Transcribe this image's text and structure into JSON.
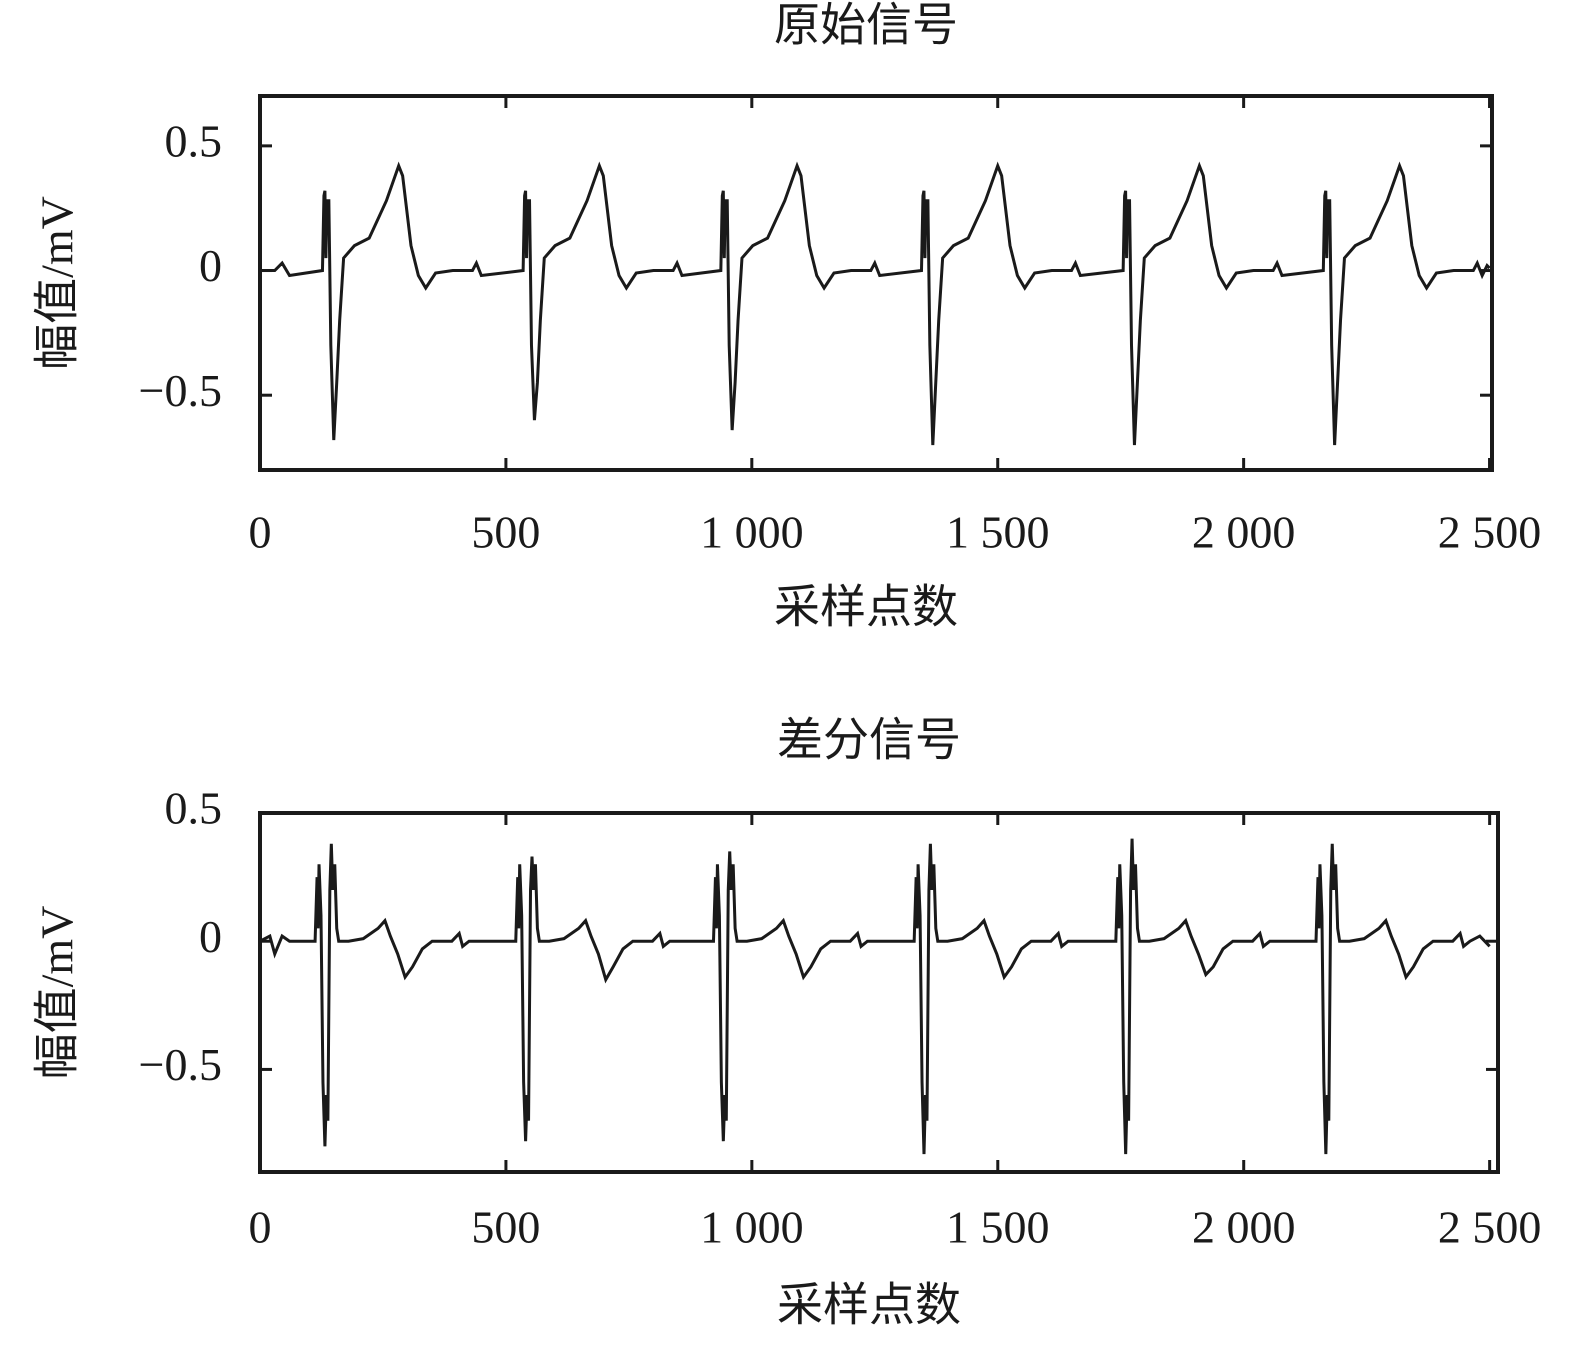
{
  "chart_data": [
    {
      "type": "line",
      "title": "原始信号",
      "xlabel": "采样点数",
      "ylabel": "幅值/mV",
      "color": "#1a1a1a",
      "xlim": [
        0,
        2505
      ],
      "ylim": [
        -0.8,
        0.7
      ],
      "xticks": [
        0,
        500,
        {
          "value": 1000,
          "label": "1 000"
        },
        {
          "value": 1500,
          "label": "1 500"
        },
        {
          "value": 2000,
          "label": "2 000"
        },
        {
          "value": 2500,
          "label": "2 500"
        }
      ],
      "yticks": [
        {
          "value": -0.5,
          "label": "−0.5"
        },
        0,
        0.5
      ],
      "x": [
        0,
        30,
        45,
        60,
        127,
        130,
        132,
        134,
        136,
        140,
        144,
        150,
        156,
        162,
        170,
        192,
        222,
        257,
        282,
        290,
        307,
        322,
        337,
        357,
        392,
        432,
        440,
        450,
        535,
        538,
        540,
        542,
        544,
        548,
        552,
        558,
        564,
        570,
        578,
        600,
        630,
        665,
        690,
        698,
        715,
        730,
        745,
        765,
        800,
        840,
        848,
        858,
        937,
        940,
        942,
        944,
        946,
        950,
        954,
        960,
        966,
        972,
        980,
        1002,
        1032,
        1067,
        1092,
        1100,
        1117,
        1132,
        1147,
        1167,
        1202,
        1242,
        1250,
        1260,
        1345,
        1348,
        1350,
        1352,
        1354,
        1358,
        1362,
        1368,
        1374,
        1380,
        1388,
        1410,
        1440,
        1475,
        1500,
        1508,
        1525,
        1540,
        1555,
        1575,
        1610,
        1650,
        1658,
        1668,
        1755,
        1758,
        1760,
        1762,
        1764,
        1768,
        1772,
        1778,
        1784,
        1790,
        1798,
        1820,
        1850,
        1885,
        1910,
        1918,
        1935,
        1950,
        1965,
        1985,
        2020,
        2060,
        2068,
        2078,
        2162,
        2165,
        2167,
        2169,
        2171,
        2175,
        2179,
        2185,
        2191,
        2197,
        2205,
        2227,
        2257,
        2292,
        2317,
        2325,
        2342,
        2357,
        2372,
        2392,
        2427,
        2467,
        2475,
        2485,
        2495,
        2500
      ],
      "values": [
        0,
        0,
        0.03,
        -0.02,
        0,
        0.3,
        0.32,
        0.05,
        0.28,
        0.28,
        -0.3,
        -0.68,
        -0.45,
        -0.2,
        0.05,
        0.1,
        0.13,
        0.28,
        0.42,
        0.38,
        0.1,
        -0.02,
        -0.07,
        -0.01,
        0,
        0,
        0.03,
        -0.02,
        0,
        0.3,
        0.32,
        0.05,
        0.28,
        0.28,
        -0.3,
        -0.6,
        -0.45,
        -0.2,
        0.05,
        0.1,
        0.13,
        0.28,
        0.42,
        0.38,
        0.1,
        -0.02,
        -0.07,
        -0.01,
        0,
        0,
        0.03,
        -0.02,
        0,
        0.3,
        0.32,
        0.05,
        0.28,
        0.28,
        -0.3,
        -0.64,
        -0.45,
        -0.2,
        0.05,
        0.1,
        0.13,
        0.28,
        0.42,
        0.38,
        0.1,
        -0.02,
        -0.07,
        -0.01,
        0,
        0,
        0.03,
        -0.02,
        0,
        0.3,
        0.32,
        0.05,
        0.28,
        0.28,
        -0.3,
        -0.7,
        -0.45,
        -0.2,
        0.05,
        0.1,
        0.13,
        0.28,
        0.42,
        0.38,
        0.1,
        -0.02,
        -0.07,
        -0.01,
        0,
        0,
        0.03,
        -0.02,
        0,
        0.3,
        0.32,
        0.05,
        0.28,
        0.28,
        -0.3,
        -0.7,
        -0.45,
        -0.2,
        0.05,
        0.1,
        0.13,
        0.28,
        0.42,
        0.38,
        0.1,
        -0.02,
        -0.07,
        -0.01,
        0,
        0,
        0.03,
        -0.02,
        0,
        0.3,
        0.32,
        0.05,
        0.28,
        0.28,
        -0.3,
        -0.7,
        -0.45,
        -0.2,
        0.05,
        0.1,
        0.13,
        0.28,
        0.42,
        0.38,
        0.1,
        -0.02,
        -0.07,
        -0.01,
        0,
        0,
        0.03,
        -0.02,
        0.02,
        0.01
      ]
    },
    {
      "type": "line",
      "title": "差分信号",
      "xlabel": "采样点数",
      "ylabel": "幅值/mV",
      "color": "#1a1a1a",
      "xlim": [
        0,
        2517
      ],
      "ylim": [
        -0.9,
        0.5
      ],
      "xticks": [
        0,
        500,
        {
          "value": 1000,
          "label": "1 000"
        },
        {
          "value": 1500,
          "label": "1 500"
        },
        {
          "value": 2000,
          "label": "2 000"
        },
        {
          "value": 2500,
          "label": "2 500"
        }
      ],
      "yticks": [
        {
          "value": -0.5,
          "label": "−0.5"
        },
        0,
        0.5
      ],
      "x": [
        0,
        20,
        30,
        45,
        60,
        112,
        116,
        118,
        120,
        124,
        128,
        132,
        135,
        138,
        142,
        145,
        148,
        152,
        156,
        160,
        180,
        210,
        240,
        254,
        265,
        280,
        295,
        310,
        330,
        350,
        390,
        405,
        412,
        425,
        520,
        524,
        526,
        528,
        532,
        536,
        540,
        543,
        546,
        550,
        553,
        556,
        560,
        564,
        568,
        588,
        618,
        648,
        662,
        673,
        688,
        703,
        718,
        738,
        758,
        798,
        813,
        820,
        833,
        922,
        926,
        928,
        930,
        934,
        938,
        942,
        945,
        948,
        952,
        955,
        958,
        962,
        966,
        970,
        990,
        1020,
        1050,
        1064,
        1075,
        1090,
        1105,
        1120,
        1140,
        1160,
        1200,
        1215,
        1222,
        1235,
        1330,
        1334,
        1336,
        1338,
        1342,
        1346,
        1350,
        1353,
        1356,
        1360,
        1363,
        1366,
        1370,
        1374,
        1378,
        1398,
        1428,
        1458,
        1472,
        1483,
        1498,
        1513,
        1528,
        1548,
        1568,
        1608,
        1623,
        1630,
        1643,
        1740,
        1744,
        1746,
        1748,
        1752,
        1756,
        1760,
        1763,
        1766,
        1770,
        1773,
        1776,
        1780,
        1784,
        1788,
        1808,
        1838,
        1868,
        1882,
        1893,
        1908,
        1923,
        1938,
        1958,
        1978,
        2018,
        2033,
        2040,
        2053,
        2147,
        2151,
        2153,
        2155,
        2159,
        2163,
        2167,
        2170,
        2173,
        2177,
        2180,
        2183,
        2187,
        2191,
        2195,
        2215,
        2245,
        2275,
        2289,
        2300,
        2315,
        2330,
        2345,
        2365,
        2385,
        2425,
        2440,
        2447,
        2460,
        2480,
        2500
      ],
      "values": [
        0,
        0.02,
        -0.05,
        0.02,
        0,
        0,
        0.25,
        0.05,
        0.3,
        0.1,
        -0.55,
        -0.8,
        -0.6,
        -0.7,
        0.2,
        0.38,
        0.2,
        0.3,
        0.05,
        0,
        0,
        0.01,
        0.05,
        0.08,
        0.02,
        -0.05,
        -0.14,
        -0.1,
        -0.03,
        0,
        0,
        0.03,
        -0.02,
        0,
        0,
        0.25,
        0.05,
        0.3,
        0.1,
        -0.55,
        -0.78,
        -0.6,
        -0.7,
        0.2,
        0.33,
        0.2,
        0.3,
        0.05,
        0,
        0,
        0.01,
        0.05,
        0.08,
        0.02,
        -0.05,
        -0.15,
        -0.1,
        -0.03,
        0,
        0,
        0.03,
        -0.02,
        0,
        0,
        0.25,
        0.05,
        0.3,
        0.1,
        -0.55,
        -0.78,
        -0.6,
        -0.7,
        0.2,
        0.35,
        0.2,
        0.3,
        0.05,
        0,
        0,
        0.01,
        0.05,
        0.08,
        0.02,
        -0.05,
        -0.14,
        -0.1,
        -0.03,
        0,
        0,
        0.03,
        -0.02,
        0,
        0,
        0.25,
        0.05,
        0.3,
        0.1,
        -0.55,
        -0.83,
        -0.6,
        -0.7,
        0.2,
        0.38,
        0.2,
        0.3,
        0.05,
        0,
        0,
        0.01,
        0.05,
        0.08,
        0.02,
        -0.05,
        -0.14,
        -0.1,
        -0.03,
        0,
        0,
        0.03,
        -0.02,
        0,
        0,
        0.25,
        0.05,
        0.3,
        0.1,
        -0.55,
        -0.83,
        -0.6,
        -0.7,
        0.2,
        0.4,
        0.2,
        0.3,
        0.05,
        0,
        0,
        0.01,
        0.05,
        0.08,
        0.02,
        -0.05,
        -0.13,
        -0.1,
        -0.03,
        0,
        0,
        0.03,
        -0.02,
        0,
        0,
        0.25,
        0.05,
        0.3,
        0.1,
        -0.55,
        -0.83,
        -0.6,
        -0.7,
        0.2,
        0.38,
        0.2,
        0.3,
        0.05,
        0,
        0,
        0.01,
        0.05,
        0.08,
        0.02,
        -0.05,
        -0.14,
        -0.1,
        -0.03,
        0,
        0,
        0.03,
        -0.02,
        0,
        0.02,
        -0.02
      ]
    }
  ]
}
